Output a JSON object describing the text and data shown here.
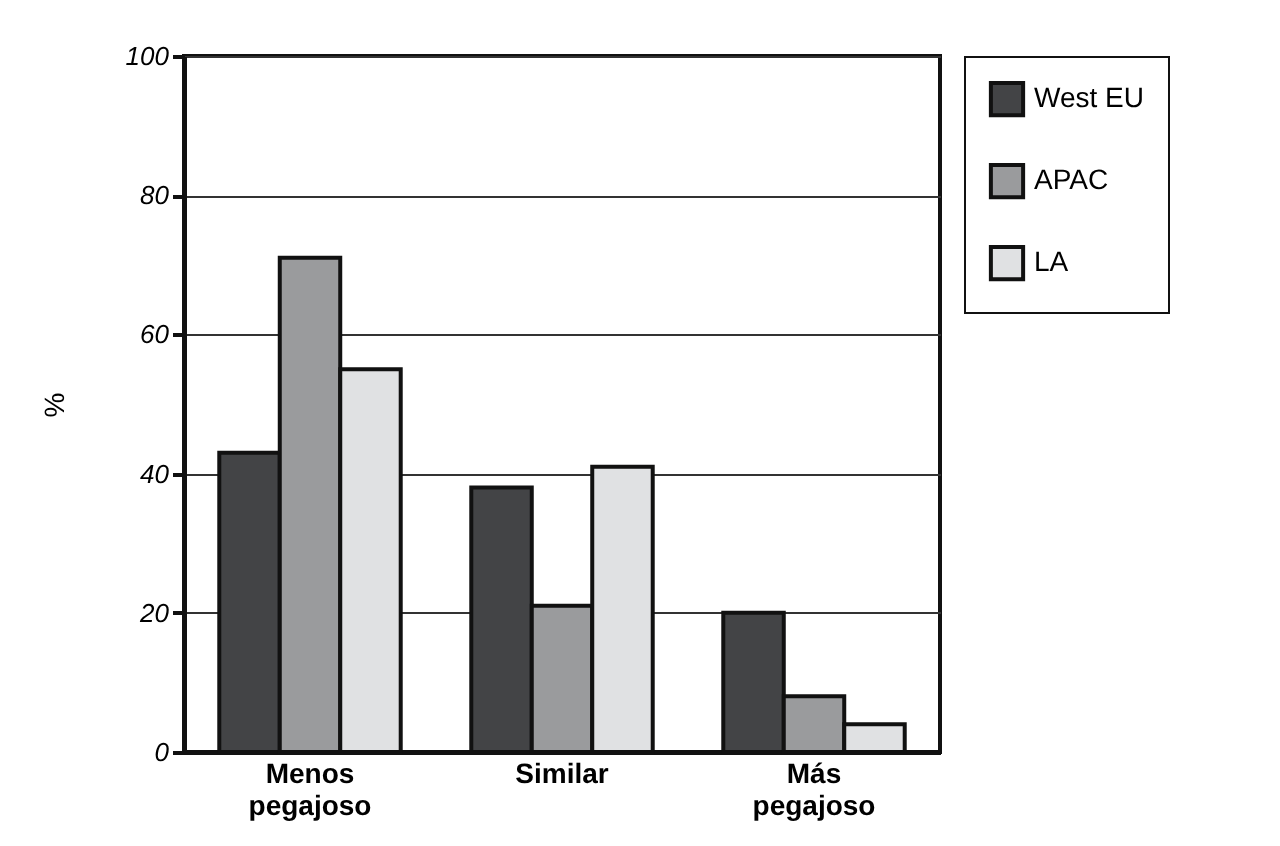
{
  "chart_data": {
    "type": "bar",
    "ylabel": "%",
    "categories": [
      "Menos pegajoso",
      "Similar",
      "Más pegajoso"
    ],
    "series": [
      {
        "name": "West EU",
        "color": "#434446",
        "values": [
          43,
          38,
          20
        ]
      },
      {
        "name": "APAC",
        "color": "#9a9b9d",
        "values": [
          71,
          21,
          8
        ]
      },
      {
        "name": "LA",
        "color": "#e0e1e3",
        "values": [
          55,
          41,
          4
        ]
      }
    ],
    "ylim": [
      0,
      100
    ],
    "yticks": [
      0,
      20,
      40,
      60,
      80,
      100
    ],
    "grid": "y",
    "legend": "top right"
  }
}
